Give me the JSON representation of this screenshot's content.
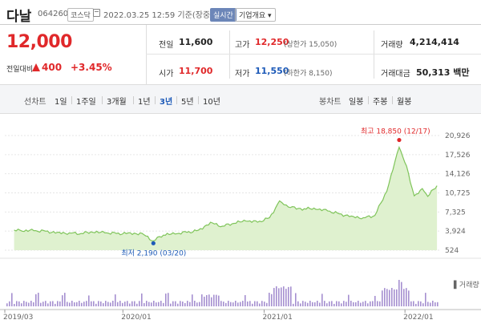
{
  "header": {
    "name": "다날",
    "code": "064260",
    "market": "코스닥",
    "time": "2022.03.25 12:59 기준(장중)",
    "realtime": "실시간",
    "company_info": "기업개요 ▾"
  },
  "price": {
    "current": "12,000",
    "change_label": "전일대비",
    "change": "400",
    "change_pct": "+3.45%"
  },
  "stats": {
    "prev_label": "전일",
    "prev": "11,600",
    "high_label": "고가",
    "high": "12,250",
    "upper_label": "(상한가 15,050)",
    "volume_label": "거래량",
    "volume": "4,214,414",
    "open_label": "시가",
    "open": "11,700",
    "low_label": "저가",
    "low": "11,550",
    "lower_label": "(하한가 8,150)",
    "amount_label": "거래대금",
    "amount": "50,313 백만"
  },
  "toolbar": {
    "line_label": "선차트",
    "periods": [
      "1일",
      "1주일",
      "3개월",
      "1년",
      "3년",
      "5년",
      "10년"
    ],
    "selected": "3년",
    "candle_label": "봉차트",
    "candles": [
      "일봉",
      "주봉",
      "월봉"
    ]
  },
  "colors": {
    "line": "#7fc45a",
    "fill": "#dff1cf",
    "volume": "#a58fd0",
    "up": "#e0282a",
    "down": "#1d5ab8"
  },
  "chart_data": {
    "type": "area",
    "x_ticks": [
      "2019/03",
      "2020/01",
      "2021/01",
      "2022/01"
    ],
    "y_ticks": [
      20926,
      17526,
      14126,
      10725,
      7325,
      3924,
      524
    ],
    "ylim": [
      524,
      20926
    ],
    "volume_label": "거래량",
    "annotations": {
      "max_label": "최고 18,850 (12/17)",
      "max_value": 18850,
      "max_date": "2021/12/17",
      "min_label": "최저 2,190 (03/20)",
      "min_value": 2190,
      "min_date": "2020/03/20"
    },
    "series": [
      {
        "values": [
          {
            "x": "2019/03/25",
            "y": 4100
          },
          {
            "x": "2019/04/15",
            "y": 3900
          },
          {
            "x": "2019/05/15",
            "y": 4000
          },
          {
            "x": "2019/06/15",
            "y": 3900
          },
          {
            "x": "2019/07/15",
            "y": 3700
          },
          {
            "x": "2019/08/15",
            "y": 3600
          },
          {
            "x": "2019/09/15",
            "y": 3500
          },
          {
            "x": "2019/10/15",
            "y": 3700
          },
          {
            "x": "2019/11/15",
            "y": 3600
          },
          {
            "x": "2019/12/15",
            "y": 3500
          },
          {
            "x": "2020/01/15",
            "y": 3600
          },
          {
            "x": "2020/02/20",
            "y": 3500
          },
          {
            "x": "2020/03/20",
            "y": 2190
          },
          {
            "x": "2020/04/15",
            "y": 3200
          },
          {
            "x": "2020/05/15",
            "y": 3400
          },
          {
            "x": "2020/06/15",
            "y": 3700
          },
          {
            "x": "2020/07/15",
            "y": 4100
          },
          {
            "x": "2020/08/15",
            "y": 5500
          },
          {
            "x": "2020/09/15",
            "y": 4800
          },
          {
            "x": "2020/10/15",
            "y": 5300
          },
          {
            "x": "2020/11/15",
            "y": 5700
          },
          {
            "x": "2020/12/15",
            "y": 5500
          },
          {
            "x": "2021/01/15",
            "y": 6300
          },
          {
            "x": "2021/02/10",
            "y": 9300
          },
          {
            "x": "2021/03/05",
            "y": 8200
          },
          {
            "x": "2021/04/15",
            "y": 7900
          },
          {
            "x": "2021/05/15",
            "y": 7800
          },
          {
            "x": "2021/06/15",
            "y": 7500
          },
          {
            "x": "2021/07/15",
            "y": 7000
          },
          {
            "x": "2021/08/15",
            "y": 6600
          },
          {
            "x": "2021/09/15",
            "y": 6300
          },
          {
            "x": "2021/10/15",
            "y": 6700
          },
          {
            "x": "2021/11/15",
            "y": 11000
          },
          {
            "x": "2021/12/17",
            "y": 18850
          },
          {
            "x": "2022/01/05",
            "y": 15500
          },
          {
            "x": "2022/01/25",
            "y": 10200
          },
          {
            "x": "2022/02/15",
            "y": 11500
          },
          {
            "x": "2022/03/01",
            "y": 10100
          },
          {
            "x": "2022/03/25",
            "y": 12000
          }
        ]
      }
    ]
  }
}
